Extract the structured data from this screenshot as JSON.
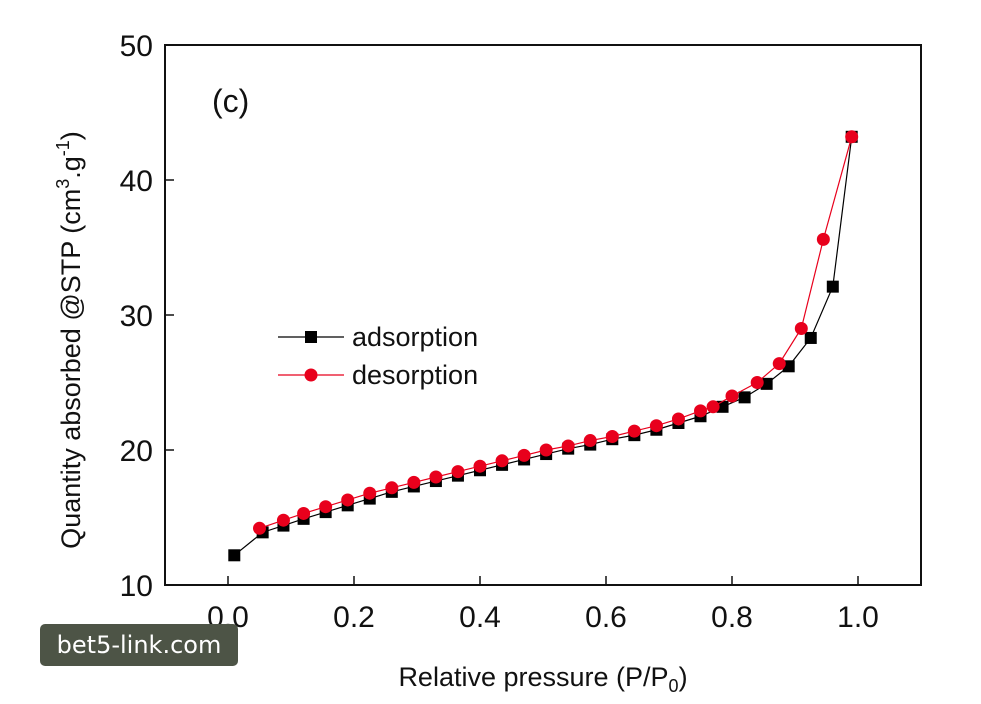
{
  "chart_data": {
    "type": "line",
    "panel_label": "(c)",
    "xlabel": "Relative pressure (P/P",
    "xlabel_sub": "0",
    "xlabel_close": ")",
    "ylabel": "Quantity absorbed @STP (cm",
    "ylabel_sup": "3",
    "ylabel_mid": ".g",
    "ylabel_sup2": "-1",
    "ylabel_close": ")",
    "xlim": [
      -0.1,
      1.1
    ],
    "ylim": [
      10,
      50
    ],
    "xticks": [
      "0.0",
      "0.2",
      "0.4",
      "0.6",
      "0.8",
      "1.0"
    ],
    "yticks": [
      "10",
      "20",
      "30",
      "40",
      "50"
    ],
    "legend_position": "left-middle",
    "series": [
      {
        "name": "adsorption",
        "marker": "square",
        "color": "#000000",
        "x": [
          0.01,
          0.055,
          0.088,
          0.12,
          0.155,
          0.19,
          0.225,
          0.26,
          0.295,
          0.33,
          0.365,
          0.4,
          0.435,
          0.47,
          0.505,
          0.54,
          0.575,
          0.61,
          0.645,
          0.68,
          0.715,
          0.75,
          0.785,
          0.82,
          0.855,
          0.89,
          0.925,
          0.96,
          0.99
        ],
        "y": [
          12.2,
          13.9,
          14.4,
          14.9,
          15.4,
          15.9,
          16.4,
          16.9,
          17.3,
          17.7,
          18.1,
          18.5,
          18.9,
          19.3,
          19.7,
          20.1,
          20.4,
          20.8,
          21.1,
          21.5,
          22.0,
          22.5,
          23.2,
          23.9,
          24.9,
          26.2,
          28.3,
          32.1,
          43.2
        ]
      },
      {
        "name": "desorption",
        "marker": "circle",
        "color": "#e8001c",
        "x": [
          0.05,
          0.088,
          0.12,
          0.155,
          0.19,
          0.225,
          0.26,
          0.295,
          0.33,
          0.365,
          0.4,
          0.435,
          0.47,
          0.505,
          0.54,
          0.575,
          0.61,
          0.645,
          0.68,
          0.715,
          0.75,
          0.77,
          0.8,
          0.84,
          0.875,
          0.91,
          0.945,
          0.99
        ],
        "y": [
          14.2,
          14.8,
          15.3,
          15.8,
          16.3,
          16.8,
          17.2,
          17.6,
          18.0,
          18.4,
          18.8,
          19.2,
          19.6,
          20.0,
          20.3,
          20.7,
          21.0,
          21.4,
          21.8,
          22.3,
          22.9,
          23.2,
          24.0,
          25.0,
          26.4,
          29.0,
          35.6,
          43.2
        ]
      }
    ]
  },
  "watermark": "bet5-link.com"
}
